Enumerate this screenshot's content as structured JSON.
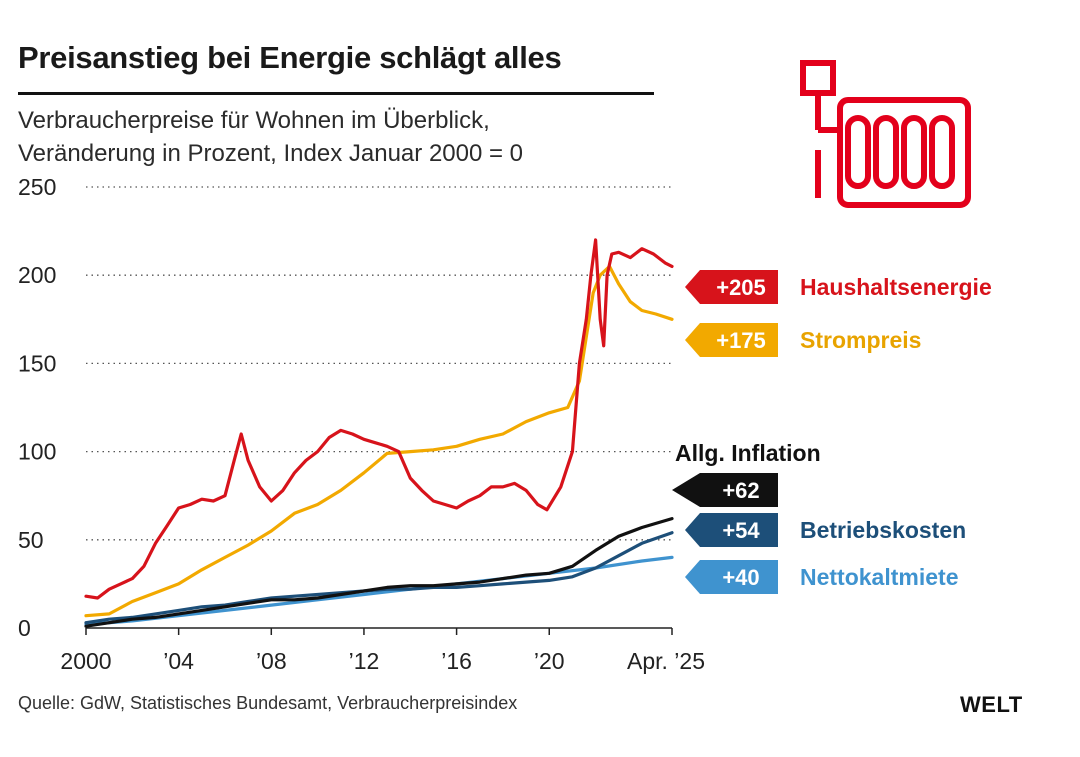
{
  "header": {
    "title": "Preisanstieg bei Energie schlägt alles",
    "subtitle_line1": "Verbraucherpreise für Wohnen im Überblick,",
    "subtitle_line2": "Veränderung in Prozent, Index Januar 2000 = 0"
  },
  "footer": {
    "source": "Quelle: GdW, Statistisches Bundesamt, Verbraucherpreisindex",
    "brand": "WELT"
  },
  "icon": {
    "name": "radiator-icon",
    "color": "#e3001b"
  },
  "chart_data": {
    "type": "line",
    "title": "Preisanstieg bei Energie schlägt alles",
    "subtitle": "Verbraucherpreise für Wohnen im Überblick, Veränderung in Prozent, Index Januar 2000 = 0",
    "x_range": [
      2000.0,
      2025.3
    ],
    "ylim": [
      0,
      250
    ],
    "y_ticks": [
      0,
      50,
      100,
      150,
      200,
      250
    ],
    "x_ticks": [
      {
        "value": 2000,
        "label": "2000"
      },
      {
        "value": 2004,
        "label": "’04"
      },
      {
        "value": 2008,
        "label": "’08"
      },
      {
        "value": 2012,
        "label": "’12"
      },
      {
        "value": 2016,
        "label": "’16"
      },
      {
        "value": 2020,
        "label": "’20"
      },
      {
        "value": 2025.3,
        "label": "Apr. ’25"
      }
    ],
    "grid": "dotted-horizontal",
    "series": [
      {
        "name": "Nettokaltmiete",
        "label": "+40",
        "color": "#3f93cf",
        "label_y": 40,
        "points": [
          [
            2000,
            2
          ],
          [
            2002,
            4
          ],
          [
            2004,
            7
          ],
          [
            2006,
            10
          ],
          [
            2008,
            13
          ],
          [
            2010,
            16
          ],
          [
            2012,
            19
          ],
          [
            2014,
            22
          ],
          [
            2016,
            25
          ],
          [
            2018,
            28
          ],
          [
            2020,
            31
          ],
          [
            2022,
            34
          ],
          [
            2024,
            38
          ],
          [
            2025.3,
            40
          ]
        ]
      },
      {
        "name": "Betriebskosten",
        "label": "+54",
        "color": "#1d4f79",
        "label_y": 54,
        "points": [
          [
            2000,
            3
          ],
          [
            2001,
            5
          ],
          [
            2002,
            6
          ],
          [
            2003,
            8
          ],
          [
            2004,
            10
          ],
          [
            2005,
            12
          ],
          [
            2006,
            13
          ],
          [
            2007,
            15
          ],
          [
            2008,
            17
          ],
          [
            2009,
            18
          ],
          [
            2010,
            19
          ],
          [
            2011,
            20
          ],
          [
            2012,
            21
          ],
          [
            2013,
            22
          ],
          [
            2014,
            22
          ],
          [
            2015,
            23
          ],
          [
            2016,
            23
          ],
          [
            2017,
            24
          ],
          [
            2018,
            25
          ],
          [
            2019,
            26
          ],
          [
            2020,
            27
          ],
          [
            2021,
            29
          ],
          [
            2022,
            34
          ],
          [
            2023,
            41
          ],
          [
            2024,
            48
          ],
          [
            2025.3,
            54
          ]
        ]
      },
      {
        "name": "Allg. Inflation",
        "label": "+62",
        "color": "#111111",
        "label_y": 62,
        "points": [
          [
            2000,
            1
          ],
          [
            2001,
            3
          ],
          [
            2002,
            5
          ],
          [
            2003,
            6
          ],
          [
            2004,
            8
          ],
          [
            2005,
            10
          ],
          [
            2006,
            12
          ],
          [
            2007,
            14
          ],
          [
            2008,
            16
          ],
          [
            2009,
            16
          ],
          [
            2010,
            17
          ],
          [
            2011,
            19
          ],
          [
            2012,
            21
          ],
          [
            2013,
            23
          ],
          [
            2014,
            24
          ],
          [
            2015,
            24
          ],
          [
            2016,
            25
          ],
          [
            2017,
            26
          ],
          [
            2018,
            28
          ],
          [
            2019,
            30
          ],
          [
            2020,
            31
          ],
          [
            2021,
            35
          ],
          [
            2022,
            44
          ],
          [
            2023,
            52
          ],
          [
            2024,
            57
          ],
          [
            2025.3,
            62
          ]
        ]
      },
      {
        "name": "Strompreis",
        "label": "+175",
        "color": "#f2a900",
        "label_y": 175,
        "points": [
          [
            2000,
            7
          ],
          [
            2001,
            8
          ],
          [
            2002,
            15
          ],
          [
            2003,
            20
          ],
          [
            2004,
            25
          ],
          [
            2005,
            33
          ],
          [
            2006,
            40
          ],
          [
            2007,
            47
          ],
          [
            2008,
            55
          ],
          [
            2009,
            65
          ],
          [
            2010,
            70
          ],
          [
            2011,
            78
          ],
          [
            2012,
            88
          ],
          [
            2013,
            99
          ],
          [
            2014,
            100
          ],
          [
            2015,
            101
          ],
          [
            2016,
            103
          ],
          [
            2017,
            107
          ],
          [
            2018,
            110
          ],
          [
            2019,
            117
          ],
          [
            2020,
            122
          ],
          [
            2020.8,
            125
          ],
          [
            2021.3,
            140
          ],
          [
            2021.6,
            165
          ],
          [
            2021.9,
            190
          ],
          [
            2022.2,
            200
          ],
          [
            2022.6,
            205
          ],
          [
            2023.0,
            195
          ],
          [
            2023.5,
            185
          ],
          [
            2024.0,
            180
          ],
          [
            2024.6,
            178
          ],
          [
            2025.3,
            175
          ]
        ]
      },
      {
        "name": "Haushaltsenergie",
        "label": "+205",
        "color": "#d7131b",
        "label_y": 205,
        "points": [
          [
            2000,
            18
          ],
          [
            2000.5,
            17
          ],
          [
            2001,
            22
          ],
          [
            2001.5,
            25
          ],
          [
            2002,
            28
          ],
          [
            2002.5,
            35
          ],
          [
            2003,
            48
          ],
          [
            2003.5,
            58
          ],
          [
            2004,
            68
          ],
          [
            2004.5,
            70
          ],
          [
            2005,
            73
          ],
          [
            2005.5,
            72
          ],
          [
            2006,
            75
          ],
          [
            2006.4,
            95
          ],
          [
            2006.7,
            110
          ],
          [
            2007.0,
            95
          ],
          [
            2007.5,
            80
          ],
          [
            2008,
            72
          ],
          [
            2008.5,
            78
          ],
          [
            2009,
            88
          ],
          [
            2009.5,
            95
          ],
          [
            2010,
            100
          ],
          [
            2010.5,
            108
          ],
          [
            2011,
            112
          ],
          [
            2011.5,
            110
          ],
          [
            2012,
            107
          ],
          [
            2012.5,
            105
          ],
          [
            2013,
            103
          ],
          [
            2013.5,
            100
          ],
          [
            2014,
            85
          ],
          [
            2014.5,
            78
          ],
          [
            2015,
            72
          ],
          [
            2015.5,
            70
          ],
          [
            2016,
            68
          ],
          [
            2016.5,
            72
          ],
          [
            2017,
            75
          ],
          [
            2017.5,
            80
          ],
          [
            2018,
            80
          ],
          [
            2018.5,
            82
          ],
          [
            2019,
            78
          ],
          [
            2019.5,
            70
          ],
          [
            2019.9,
            67
          ],
          [
            2020.5,
            80
          ],
          [
            2021.0,
            100
          ],
          [
            2021.3,
            150
          ],
          [
            2021.6,
            175
          ],
          [
            2021.8,
            200
          ],
          [
            2022.0,
            220
          ],
          [
            2022.2,
            175
          ],
          [
            2022.35,
            160
          ],
          [
            2022.5,
            200
          ],
          [
            2022.7,
            212
          ],
          [
            2023.0,
            213
          ],
          [
            2023.5,
            210
          ],
          [
            2024.0,
            215
          ],
          [
            2024.5,
            212
          ],
          [
            2025.0,
            207
          ],
          [
            2025.3,
            205
          ]
        ]
      }
    ],
    "callout": "Allg. Inflation"
  }
}
